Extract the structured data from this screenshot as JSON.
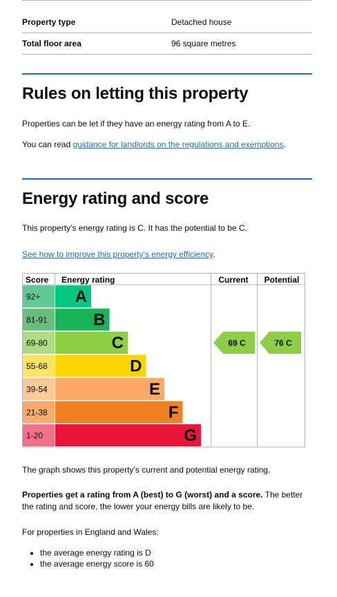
{
  "summary": {
    "rows": [
      {
        "label": "Property type",
        "value": "Detached house"
      },
      {
        "label": "Total floor area",
        "value": "96 square metres"
      }
    ]
  },
  "rules": {
    "heading": "Rules on letting this property",
    "p1": "Properties can be let if they have an energy rating from A to E.",
    "p2_prefix": "You can read ",
    "p2_link": "guidance for landlords on the regulations and exemptions",
    "p2_suffix": "."
  },
  "energy": {
    "heading": "Energy rating and score",
    "p1": "This property’s energy rating is C. It has the potential to be C.",
    "link": "See how to improve this property’s energy efficiency",
    "link_suffix": "."
  },
  "chart_data": {
    "type": "table",
    "headers": {
      "score": "Score",
      "rating": "Energy rating",
      "current": "Current",
      "potential": "Potential"
    },
    "bands": [
      {
        "score": "92+",
        "letter": "A",
        "color": "#00c781",
        "score_bg": "#62c898"
      },
      {
        "score": "81-91",
        "letter": "B",
        "color": "#19b459",
        "score_bg": "#6bbd7f"
      },
      {
        "score": "69-80",
        "letter": "C",
        "color": "#8dce46",
        "score_bg": "#aedc84"
      },
      {
        "score": "55-68",
        "letter": "D",
        "color": "#ffd500",
        "score_bg": "#ffe366"
      },
      {
        "score": "39-54",
        "letter": "E",
        "color": "#fcaa65",
        "score_bg": "#fcc898"
      },
      {
        "score": "21-38",
        "letter": "F",
        "color": "#ef8023",
        "score_bg": "#f5aa6e"
      },
      {
        "score": "1-20",
        "letter": "G",
        "color": "#e9153b",
        "score_bg": "#f07189"
      }
    ],
    "current": {
      "value": 69,
      "letter": "C",
      "label": "69 C",
      "color": "#8dce46"
    },
    "potential": {
      "value": 76,
      "letter": "C",
      "label": "76 C",
      "color": "#8dce46"
    }
  },
  "after": {
    "p1": "The graph shows this property’s current and potential energy rating.",
    "p2_bold": "Properties get a rating from A (best) to G (worst) and a score.",
    "p2_rest": " The better the rating and score, the lower your energy bills are likely to be.",
    "p3": "For properties in England and Wales:",
    "bullets": [
      "the average energy rating is D",
      "the average energy score is 60"
    ]
  }
}
